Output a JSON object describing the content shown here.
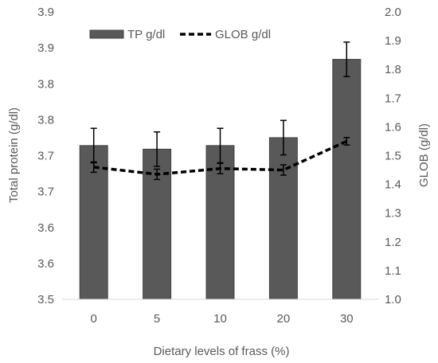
{
  "chart_data": {
    "type": "bar",
    "categories": [
      "0",
      "5",
      "10",
      "20",
      "30"
    ],
    "xlabel": "Dietary levels of frass (%)",
    "ylabel": "Total protein (g/dl)",
    "y2label": "GLOB (g/dl)",
    "ylim": [
      3.5,
      3.9
    ],
    "y_ticks": [
      "3.5",
      "3.6",
      "3.6",
      "3.7",
      "3.7",
      "3.8",
      "3.8",
      "3.9",
      "3.9"
    ],
    "y2lim": [
      1.0,
      2.0
    ],
    "y2_ticks": [
      "1.0",
      "1.1",
      "1.2",
      "1.3",
      "1.4",
      "1.5",
      "1.6",
      "1.7",
      "1.8",
      "1.9",
      "2.0"
    ],
    "grid": false,
    "legend_position": "top",
    "series": [
      {
        "name": "TP g/dl",
        "kind": "bar",
        "axis": "left",
        "color": "#595959",
        "values": [
          3.714,
          3.709,
          3.714,
          3.725,
          3.834
        ],
        "errors": [
          0.024,
          0.024,
          0.024,
          0.024,
          0.024
        ]
      },
      {
        "name": "GLOB g/dl",
        "kind": "line",
        "style": "dashed",
        "axis": "right",
        "color": "#000000",
        "values": [
          1.46,
          1.435,
          1.455,
          1.45,
          1.55
        ],
        "errors": [
          0.018,
          0.018,
          0.018,
          0.018,
          0.013
        ]
      }
    ]
  }
}
